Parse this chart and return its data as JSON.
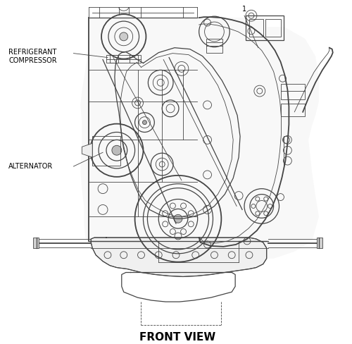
{
  "title": "FRONT VIEW",
  "title_fontsize": 11,
  "title_fontweight": "bold",
  "bg_color": "#ffffff",
  "line_color": "#444444",
  "label_refrigerant_line1": "REFRIGERANT",
  "label_refrigerant_line2": "COMPRESSOR",
  "label_alternator": "ALTERNATOR",
  "label_1": "1",
  "fig_width": 5.0,
  "fig_height": 4.89
}
